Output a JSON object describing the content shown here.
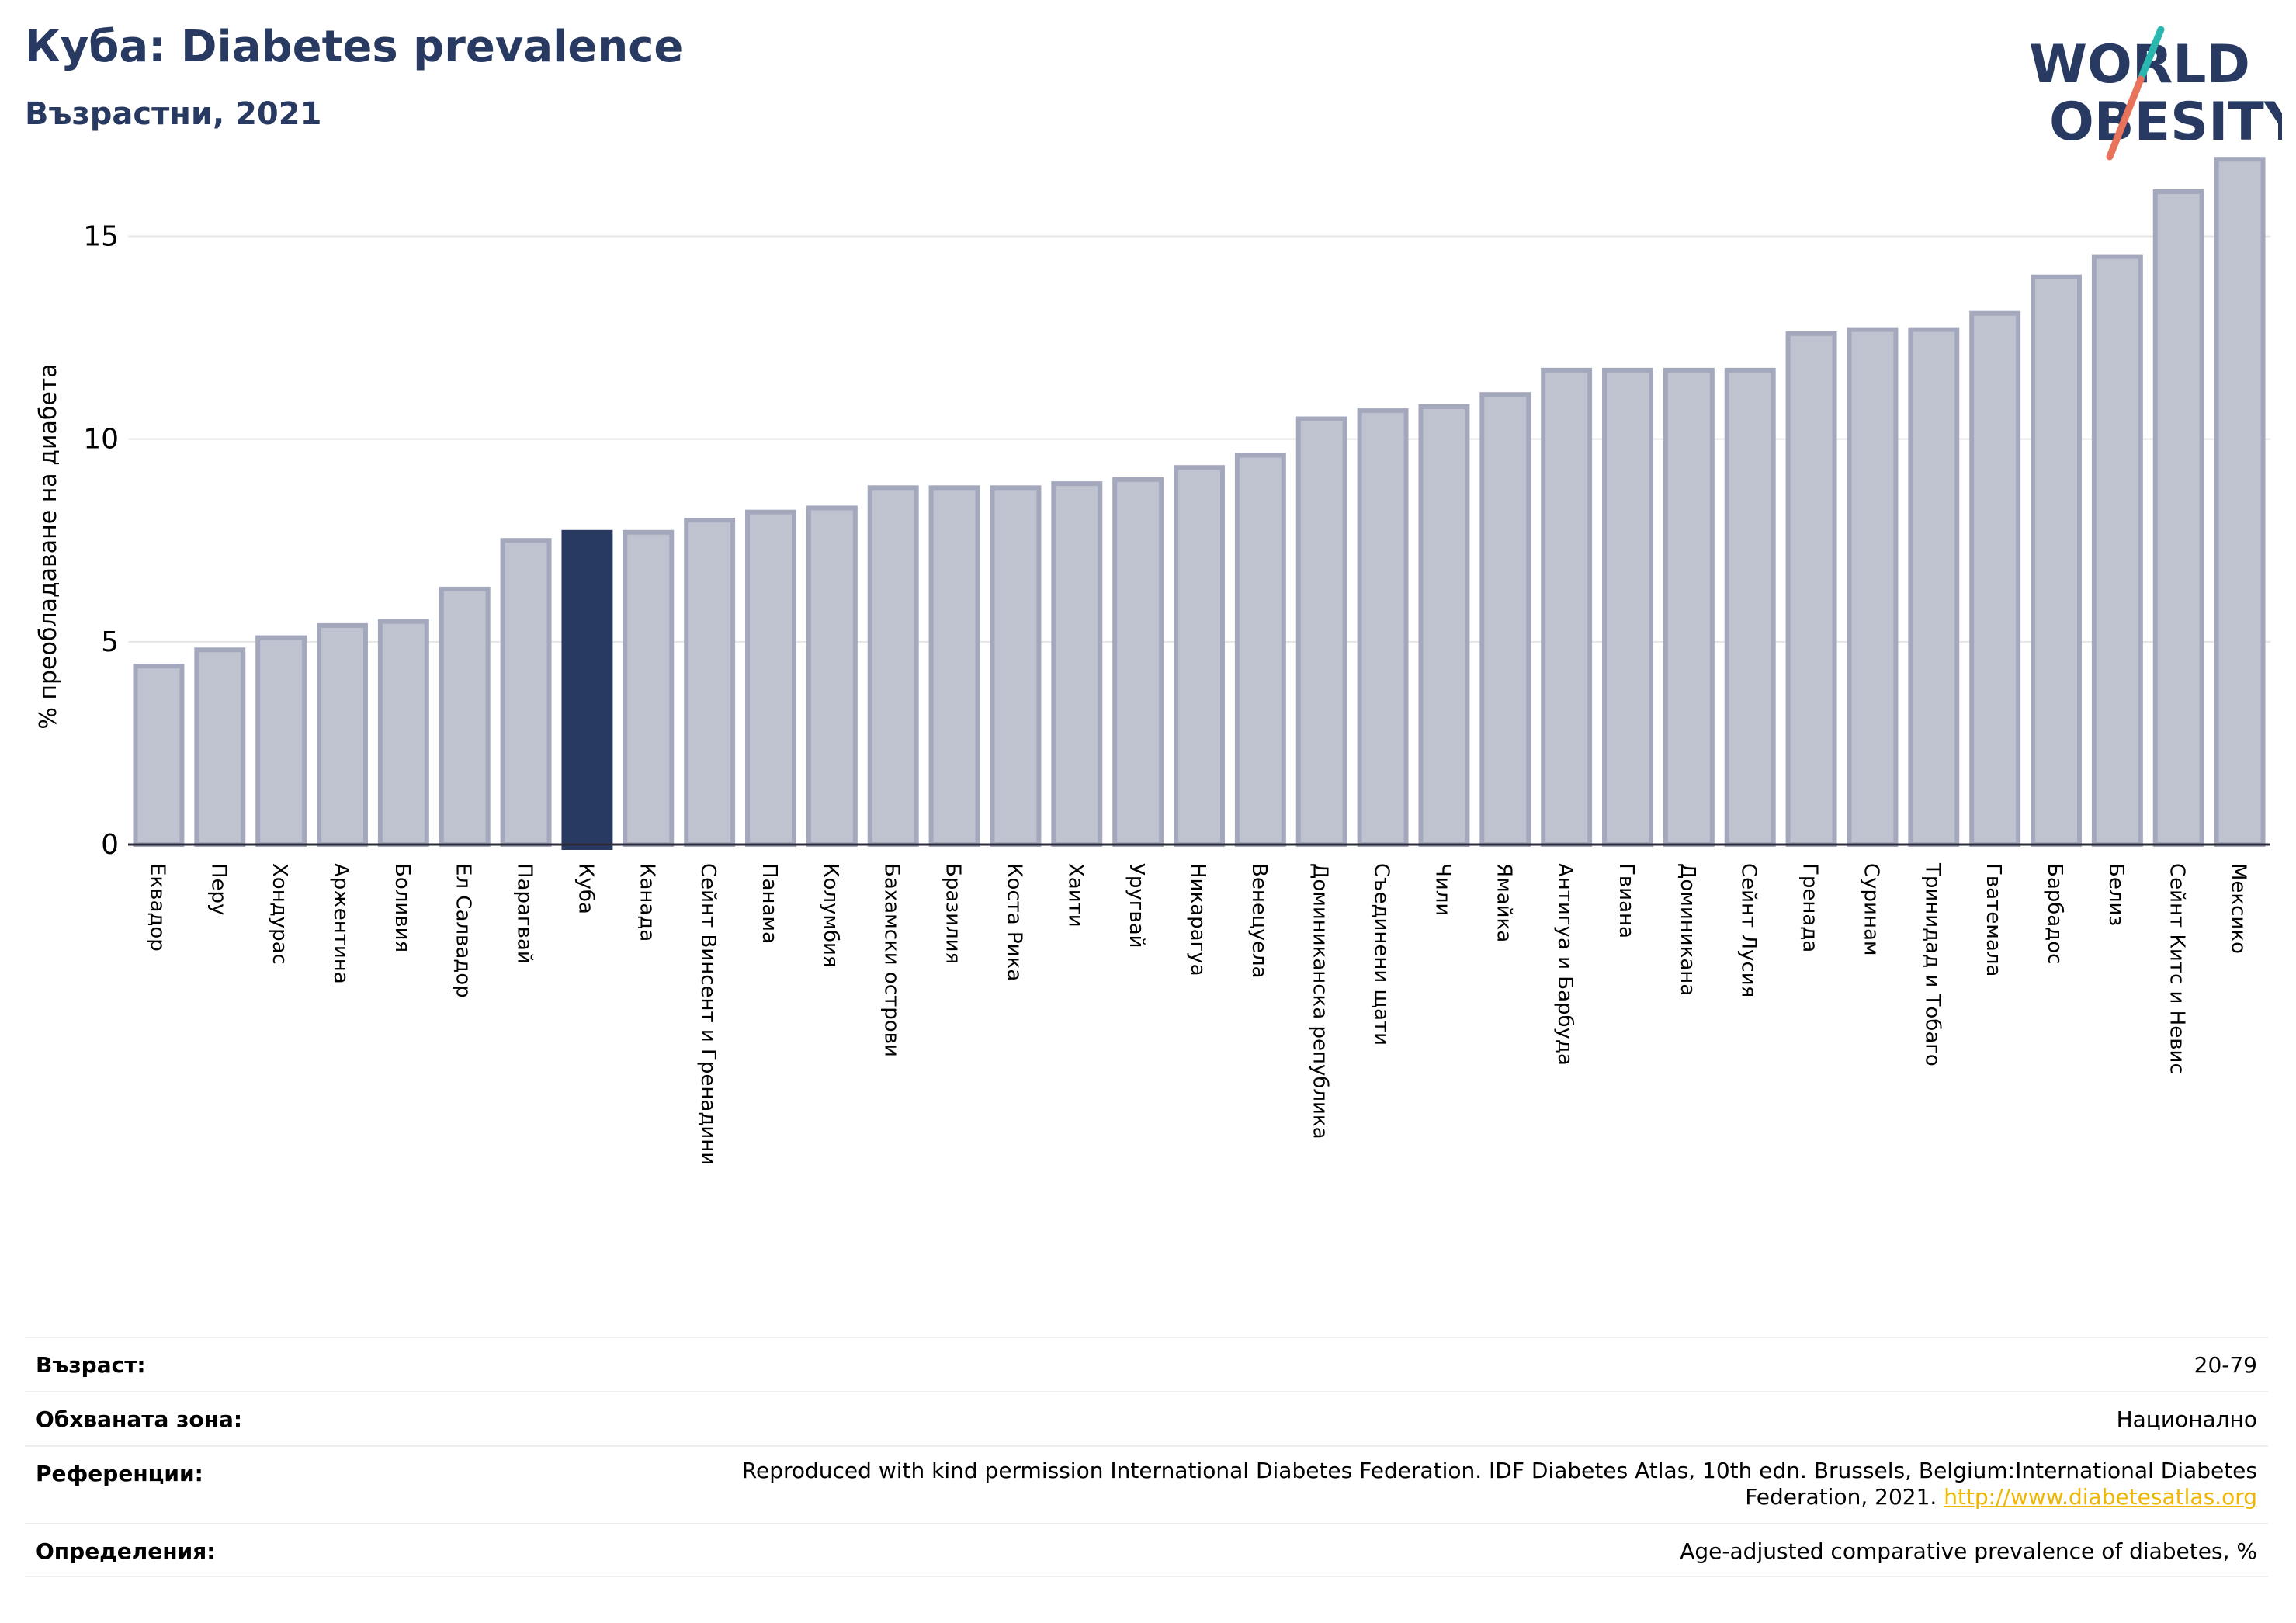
{
  "header": {
    "title": "Куба: Diabetes prevalence",
    "subtitle": "Възрастни, 2021"
  },
  "logo": {
    "line1": "WORLD",
    "line2": "OBESITY",
    "accent_colors": [
      "#2ab7b0",
      "#e8735a"
    ],
    "text_color": "#283a61"
  },
  "chart_data": {
    "type": "bar",
    "ylabel": "% преобладаване на диабета",
    "xlabel": "",
    "ylim": [
      0,
      17
    ],
    "yticks": [
      0,
      5,
      10,
      15
    ],
    "grid": true,
    "highlight": "Куба",
    "bar_color": "#bfc2cf",
    "bar_edge_color": "#a3a8bc",
    "highlight_color": "#283a61",
    "categories": [
      "Еквадор",
      "Перу",
      "Хондурас",
      "Аржентина",
      "Боливия",
      "Ел Салвадор",
      "Парагвай",
      "Куба",
      "Канада",
      "Сейнт Винсент и Гренадини",
      "Панама",
      "Колумбия",
      "Бахамски острови",
      "Бразилия",
      "Коста Рика",
      "Хаити",
      "Уругвай",
      "Никарагуа",
      "Венецуела",
      "Доминиканска република",
      "Съединени щати",
      "Чили",
      "Ямайка",
      "Антигуа и Барбуда",
      "Гвиана",
      "Доминикана",
      "Сейнт Лусия",
      "Гренада",
      "Суринам",
      "Тринидад и Тобаго",
      "Гватемала",
      "Барбадос",
      "Белиз",
      "Сейнт Китс и Невис",
      "Мексико"
    ],
    "values": [
      4.4,
      4.8,
      5.1,
      5.4,
      5.5,
      6.3,
      7.5,
      7.7,
      7.7,
      8.0,
      8.2,
      8.3,
      8.8,
      8.8,
      8.8,
      8.9,
      9.0,
      9.3,
      9.6,
      10.5,
      10.7,
      10.8,
      11.1,
      11.7,
      11.7,
      11.7,
      11.7,
      12.6,
      12.7,
      12.7,
      13.1,
      14.0,
      14.5,
      16.1,
      16.9
    ]
  },
  "info": {
    "rows": [
      {
        "label": "Възраст:",
        "value": "20-79"
      },
      {
        "label": "Обхваната зона:",
        "value": "Национално"
      },
      {
        "label": "Референции:",
        "value": "Reproduced with kind permission International Diabetes Federation.  IDF Diabetes Atlas, 10th edn. Brussels, Belgium:International Diabetes Federation, 2021.",
        "link": "http://www.diabetesatlas.org"
      },
      {
        "label": "Определения:",
        "value": "Age-adjusted comparative prevalence of diabetes, %"
      }
    ]
  }
}
